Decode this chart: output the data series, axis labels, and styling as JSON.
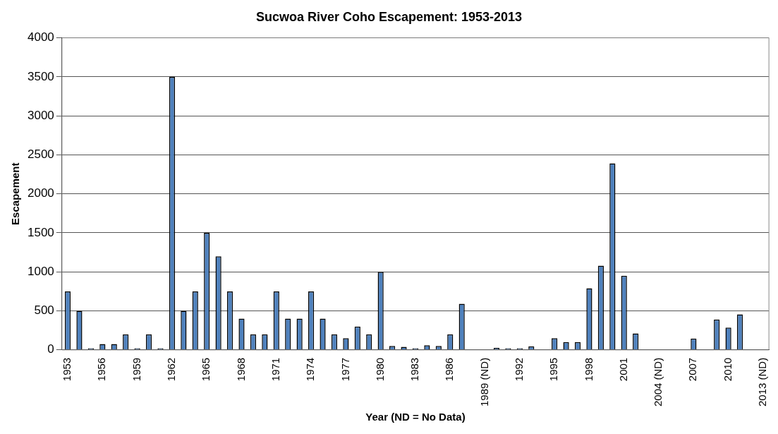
{
  "chart_data": {
    "type": "bar",
    "title": "Sucwoa River Coho Escapement: 1953-2013",
    "xlabel": "Year (ND = No Data)",
    "ylabel": "Escapement",
    "categories": [
      "1953",
      null,
      null,
      "1956",
      null,
      null,
      "1959",
      null,
      null,
      "1962",
      null,
      null,
      "1965",
      null,
      null,
      "1968",
      null,
      null,
      "1971",
      null,
      null,
      "1974",
      null,
      null,
      "1977",
      null,
      null,
      "1980",
      null,
      null,
      "1983",
      null,
      null,
      "1986",
      null,
      null,
      "1989 (ND)",
      null,
      null,
      "1992",
      null,
      null,
      "1995",
      null,
      null,
      "1998",
      null,
      null,
      "2001",
      null,
      null,
      "2004 (ND)",
      null,
      null,
      "2007",
      null,
      null,
      "2010",
      null,
      null,
      "2013 (ND)"
    ],
    "values": [
      750,
      500,
      20,
      75,
      75,
      200,
      20,
      200,
      20,
      3500,
      500,
      750,
      1500,
      1200,
      750,
      400,
      200,
      200,
      750,
      400,
      400,
      750,
      400,
      200,
      150,
      300,
      200,
      1000,
      50,
      40,
      20,
      60,
      50,
      200,
      590,
      null,
      null,
      25,
      20,
      20,
      45,
      null,
      150,
      100,
      100,
      790,
      1080,
      2390,
      950,
      210,
      null,
      null,
      null,
      null,
      145,
      null,
      390,
      285,
      455,
      null,
      null
    ],
    "color": "#4f81bd",
    "ylim": [
      0,
      4000
    ],
    "yticks": [
      0,
      500,
      1000,
      1500,
      2000,
      2500,
      3000,
      3500,
      4000
    ],
    "grid": "y",
    "legend": false
  }
}
